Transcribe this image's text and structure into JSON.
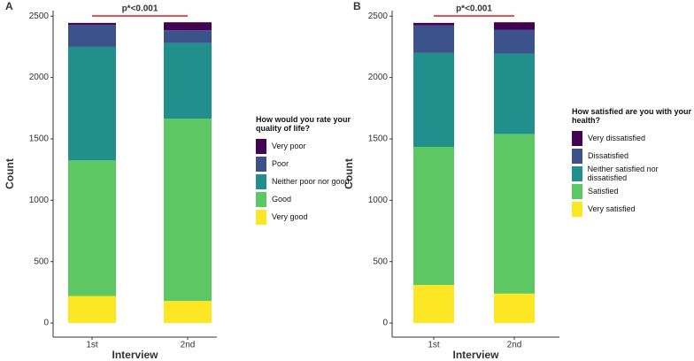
{
  "chart_data": [
    {
      "type": "stacked_bar",
      "panel_label": "A",
      "annotation": "p*<0.001",
      "x_label": "Interview",
      "y_label": "Count",
      "legend_title": "How would you rate your quality of life?",
      "categories": [
        "1st",
        "2nd"
      ],
      "series": [
        {
          "name": "Very poor",
          "color": "#440154",
          "values": [
            15,
            65
          ]
        },
        {
          "name": "Poor",
          "color": "#3b528b",
          "values": [
            180,
            105
          ]
        },
        {
          "name": "Neither poor nor good",
          "color": "#21908c",
          "values": [
            925,
            615
          ]
        },
        {
          "name": "Good",
          "color": "#5dc863",
          "values": [
            1105,
            1485
          ]
        },
        {
          "name": "Very good",
          "color": "#fde725",
          "values": [
            220,
            180
          ]
        }
      ],
      "ylim": [
        -115,
        2545
      ],
      "yticks": [
        0,
        500,
        1000,
        1500,
        2000,
        2500
      ]
    },
    {
      "type": "stacked_bar",
      "panel_label": "B",
      "annotation": "p*<0.001",
      "x_label": "Interview",
      "y_label": "Count",
      "legend_title": "How satisfied are you with your health?",
      "categories": [
        "1st",
        "2nd"
      ],
      "series": [
        {
          "name": "Very dissatisfied",
          "color": "#440154",
          "values": [
            20,
            60
          ]
        },
        {
          "name": "Dissatisfied",
          "color": "#3b528b",
          "values": [
            225,
            195
          ]
        },
        {
          "name": "Neither satisfied nor dissatisfied",
          "color": "#21908c",
          "values": [
            765,
            655
          ]
        },
        {
          "name": "Satisfied",
          "color": "#5dc863",
          "values": [
            1125,
            1300
          ]
        },
        {
          "name": "Very satisfied",
          "color": "#fde725",
          "values": [
            310,
            240
          ]
        }
      ],
      "ylim": [
        -115,
        2545
      ],
      "yticks": [
        0,
        500,
        1000,
        1500,
        2000,
        2500
      ]
    }
  ]
}
